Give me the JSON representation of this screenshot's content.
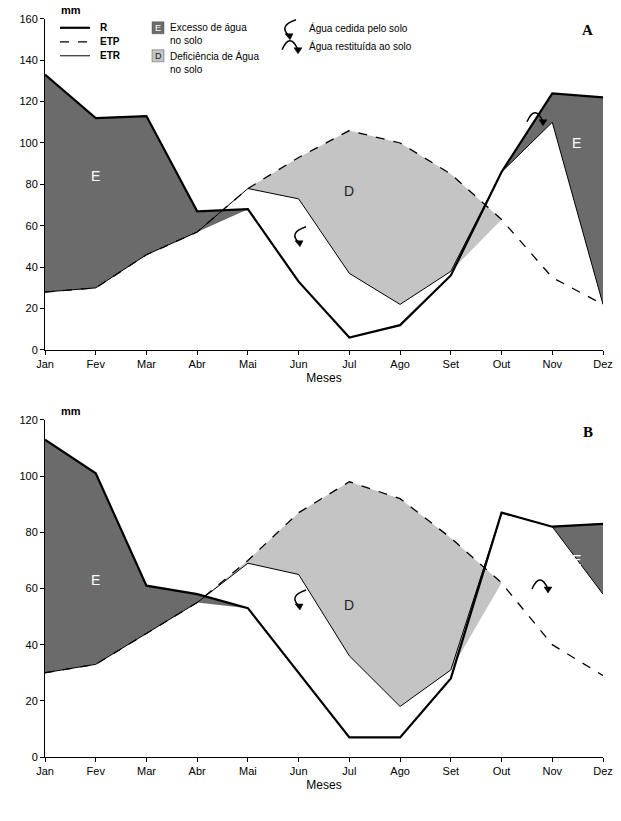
{
  "chart_data": [
    {
      "type": "line",
      "label": "A",
      "ylabel": "mm",
      "xlabel": "Meses",
      "categories": [
        "Jan",
        "Fev",
        "Mar",
        "Abr",
        "Mai",
        "Jun",
        "Jul",
        "Ago",
        "Set",
        "Out",
        "Nov",
        "Dez"
      ],
      "ylim": [
        0,
        160
      ],
      "yticks": [
        0,
        20,
        40,
        60,
        80,
        100,
        120,
        140,
        160
      ],
      "legend": "top",
      "series": [
        {
          "name": "R",
          "color": "#000000",
          "line_style": "solid",
          "values": [
            133,
            112,
            113,
            67,
            68,
            33,
            6,
            12,
            36,
            86,
            124,
            122
          ]
        },
        {
          "name": "ETP",
          "color": "#000000",
          "line_style": "dashed",
          "values": [
            28,
            30,
            46,
            57,
            78,
            93,
            106,
            100,
            85,
            63,
            35,
            22
          ]
        },
        {
          "name": "ETR",
          "color": "#000000",
          "line_style": "solid",
          "values": [
            28,
            30,
            46,
            57,
            78,
            73,
            37,
            22,
            38,
            86,
            110,
            22
          ]
        }
      ],
      "regions": [
        {
          "label": "E",
          "text": [
            "Excesso de água",
            "no solo"
          ],
          "color": "#6b6b6b"
        },
        {
          "label": "D",
          "text": [
            "Deficiência de Água",
            "no solo"
          ],
          "color": "#c4c4c4"
        }
      ],
      "flows": [
        {
          "text": "Água cedida pelo solo"
        },
        {
          "text": "Água restituída ao solo"
        }
      ],
      "annotations": [
        {
          "text": "E",
          "x": "Fev",
          "y": 84
        },
        {
          "text": "D",
          "x": "Jul",
          "y": 77
        },
        {
          "text": "E",
          "x": "Dez",
          "y": 100
        }
      ]
    },
    {
      "type": "line",
      "label": "B",
      "ylabel": "mm",
      "xlabel": "Meses",
      "categories": [
        "Jan",
        "Fev",
        "Mar",
        "Abr",
        "Mai",
        "Jun",
        "Jul",
        "Ago",
        "Set",
        "Out",
        "Nov",
        "Dez"
      ],
      "ylim": [
        0,
        120
      ],
      "yticks": [
        0,
        20,
        40,
        60,
        80,
        100,
        120
      ],
      "series": [
        {
          "color": "#000000",
          "line_style": "solid",
          "values": [
            113,
            101,
            61,
            58,
            53,
            30,
            7,
            7,
            28,
            87,
            82,
            83
          ]
        },
        {
          "color": "#000000",
          "line_style": "dashed",
          "values": [
            30,
            33,
            44,
            55,
            70,
            87,
            98,
            92,
            78,
            62,
            40,
            29
          ]
        },
        {
          "color": "#000000",
          "line_style": "solid",
          "values": [
            30,
            33,
            44,
            55,
            69,
            65,
            36,
            18,
            31,
            87,
            82,
            58
          ]
        }
      ],
      "regions": [
        {
          "label": "E",
          "color": "#6b6b6b"
        },
        {
          "label": "D",
          "color": "#c4c4c4"
        }
      ],
      "annotations": [
        {
          "text": "E",
          "x": "Fev",
          "y": 63
        },
        {
          "text": "D",
          "x": "Jul",
          "y": 54
        },
        {
          "text": "E",
          "x": "Dez",
          "y": 70
        }
      ]
    }
  ]
}
